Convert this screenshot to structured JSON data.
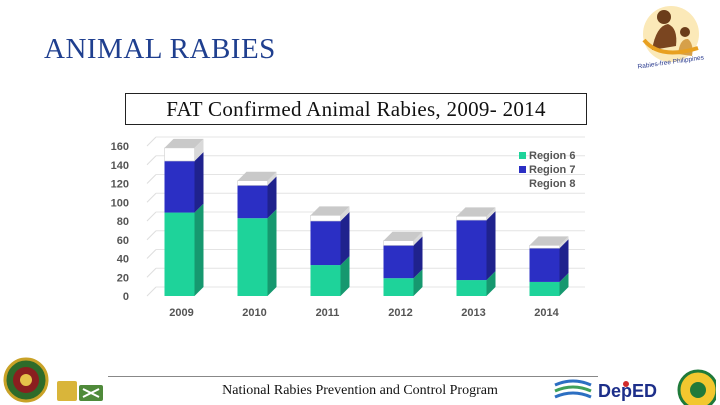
{
  "slide": {
    "title": "ANIMAL RABIES",
    "footer": "National Rabies Prevention and Control Program",
    "logo_text": "Rabies-free Philippines",
    "deped_logo": "DepED"
  },
  "colors": {
    "title": "#1f3f8f",
    "region6": "#1ed39a",
    "region7": "#2b2fc4",
    "region8": "#ffffff"
  },
  "chart_data": {
    "type": "bar",
    "stacked": true,
    "title": "FAT Confirmed Animal Rabies, 2009-  2014",
    "xlabel": "",
    "ylabel": "",
    "categories": [
      "2009",
      "2010",
      "2011",
      "2012",
      "2013",
      "2014"
    ],
    "series": [
      {
        "name": "Region 6",
        "color": "#1ed39a",
        "values": [
          89,
          83,
          33,
          19,
          17,
          15
        ]
      },
      {
        "name": "Region 7",
        "color": "#2b2fc4",
        "values": [
          55,
          35,
          47,
          35,
          64,
          36
        ]
      },
      {
        "name": "Region 8",
        "color": "#ffffff",
        "values": [
          14,
          5,
          6,
          5,
          4,
          3
        ]
      }
    ],
    "ylim": [
      0,
      160
    ],
    "yticks": [
      "0",
      "20",
      "40",
      "60",
      "80",
      "100",
      "120",
      "140",
      "160"
    ],
    "grid": true,
    "legend": "top-right"
  }
}
